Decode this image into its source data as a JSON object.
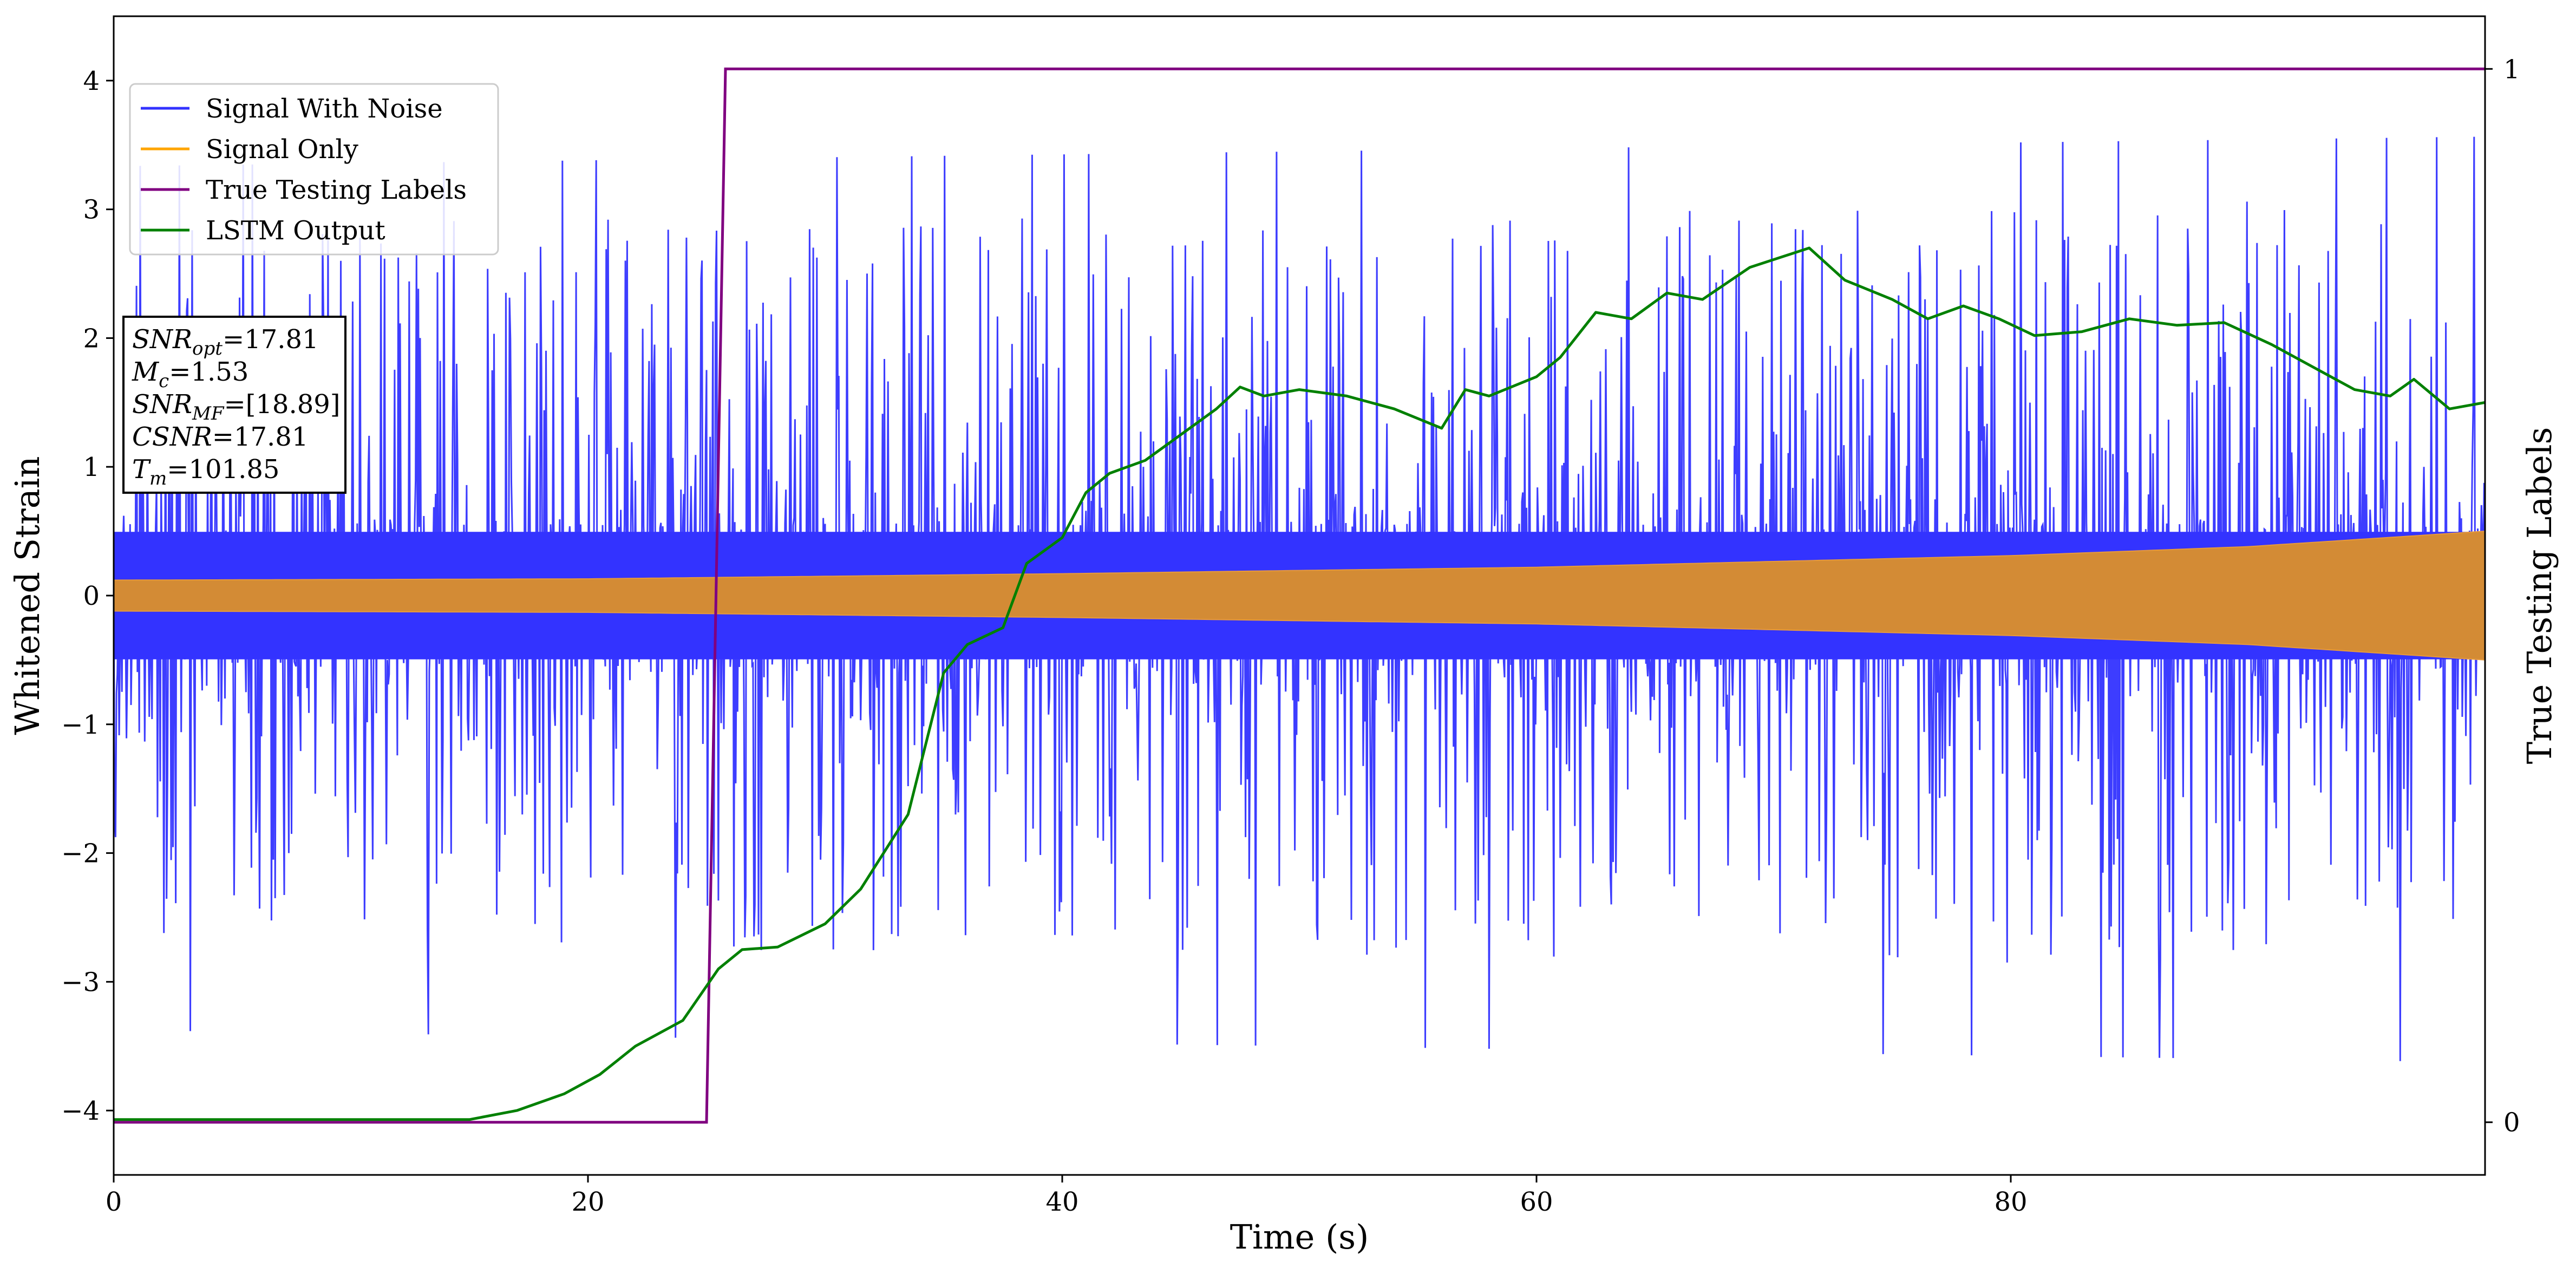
{
  "chart_data": {
    "type": "line",
    "title": "",
    "xlabel": "Time (s)",
    "ylabel": "Whitened Strain",
    "ylabel_right": "True Testing Labels",
    "xlim": [
      0,
      100
    ],
    "ylim": [
      -4.5,
      4.5
    ],
    "ylim_right": [
      -0.05,
      1.05
    ],
    "xticks": [
      0,
      20,
      40,
      60,
      80
    ],
    "yticks": [
      -4,
      -3,
      -2,
      -1,
      0,
      1,
      2,
      3,
      4
    ],
    "yticks_right": [
      0,
      1
    ],
    "grid": false,
    "legend_position": "top-left",
    "series": [
      {
        "name": "Signal With Noise",
        "axis": "left",
        "color": "#3333ff",
        "style": "dense-noise",
        "band": [
          [
            0,
            -0.55,
            0.55
          ],
          [
            100,
            -0.55,
            0.55
          ]
        ],
        "envelope": [
          [
            0,
            -2.7,
            2.9
          ],
          [
            100,
            -2.9,
            3.1
          ]
        ]
      },
      {
        "name": "Signal Only",
        "axis": "left",
        "color": "#ffa500",
        "style": "chirp-envelope",
        "amplitude": [
          [
            0,
            0.12
          ],
          [
            20,
            0.13
          ],
          [
            40,
            0.17
          ],
          [
            60,
            0.22
          ],
          [
            80,
            0.31
          ],
          [
            90,
            0.38
          ],
          [
            100,
            0.5
          ]
        ]
      },
      {
        "name": "True Testing Labels",
        "axis": "right",
        "color": "#800080",
        "points": [
          [
            0,
            0
          ],
          [
            25,
            0
          ],
          [
            25.8,
            1
          ],
          [
            100,
            1
          ]
        ]
      },
      {
        "name": "LSTM Output",
        "axis": "left",
        "color": "#008000",
        "points": [
          [
            0,
            -4.07
          ],
          [
            15,
            -4.07
          ],
          [
            17,
            -4.0
          ],
          [
            19,
            -3.87
          ],
          [
            20.5,
            -3.72
          ],
          [
            22,
            -3.5
          ],
          [
            24,
            -3.3
          ],
          [
            25.5,
            -2.9
          ],
          [
            26.5,
            -2.75
          ],
          [
            28,
            -2.73
          ],
          [
            30,
            -2.55
          ],
          [
            31.5,
            -2.28
          ],
          [
            33.5,
            -1.7
          ],
          [
            35,
            -0.6
          ],
          [
            36,
            -0.38
          ],
          [
            37.5,
            -0.25
          ],
          [
            38.5,
            0.25
          ],
          [
            40,
            0.45
          ],
          [
            41,
            0.8
          ],
          [
            42,
            0.95
          ],
          [
            43.5,
            1.05
          ],
          [
            45,
            1.25
          ],
          [
            46.5,
            1.45
          ],
          [
            47.5,
            1.62
          ],
          [
            48.5,
            1.55
          ],
          [
            50,
            1.6
          ],
          [
            52,
            1.55
          ],
          [
            54,
            1.45
          ],
          [
            56,
            1.3
          ],
          [
            57,
            1.6
          ],
          [
            58,
            1.55
          ],
          [
            60,
            1.7
          ],
          [
            61,
            1.85
          ],
          [
            62.5,
            2.2
          ],
          [
            64,
            2.15
          ],
          [
            65.5,
            2.35
          ],
          [
            67,
            2.3
          ],
          [
            69,
            2.55
          ],
          [
            71.5,
            2.7
          ],
          [
            73,
            2.45
          ],
          [
            75,
            2.3
          ],
          [
            76.5,
            2.15
          ],
          [
            78,
            2.25
          ],
          [
            79.5,
            2.15
          ],
          [
            81,
            2.02
          ],
          [
            83,
            2.05
          ],
          [
            85,
            2.15
          ],
          [
            87,
            2.1
          ],
          [
            89,
            2.12
          ],
          [
            91,
            1.95
          ],
          [
            93,
            1.75
          ],
          [
            94.5,
            1.6
          ],
          [
            96,
            1.55
          ],
          [
            97,
            1.68
          ],
          [
            98.5,
            1.45
          ],
          [
            100,
            1.5
          ]
        ]
      }
    ],
    "annotation": {
      "lines": [
        {
          "sym": "SNR",
          "sub": "opt",
          "val": "=17.81"
        },
        {
          "sym": "M",
          "sub": "c",
          "val": "=1.53"
        },
        {
          "sym": "SNR",
          "sub": "MF",
          "val": "=[18.89]"
        },
        {
          "sym": "CSNR",
          "sub": "",
          "val": "=17.81"
        },
        {
          "sym": "T",
          "sub": "m",
          "val": "=101.85"
        }
      ]
    }
  }
}
